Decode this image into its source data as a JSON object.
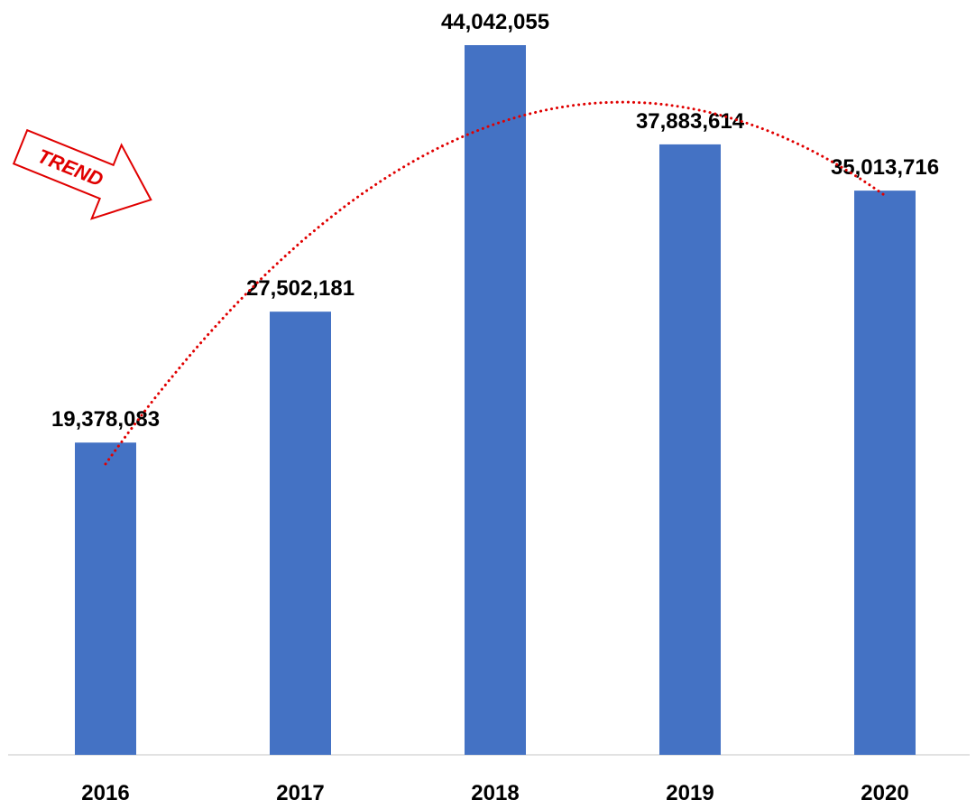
{
  "chart_data": {
    "type": "bar",
    "categories": [
      "2016",
      "2017",
      "2018",
      "2019",
      "2020"
    ],
    "values": [
      19378083,
      27502181,
      44042055,
      37883614,
      35013716
    ],
    "value_labels": [
      "19,378,083",
      "27,502,181",
      "44,042,055",
      "37,883,614",
      "35,013,716"
    ],
    "color": "#4472c4",
    "trendline": {
      "order": 2,
      "color": "#e00000"
    },
    "annotations": [
      "TREND"
    ]
  }
}
